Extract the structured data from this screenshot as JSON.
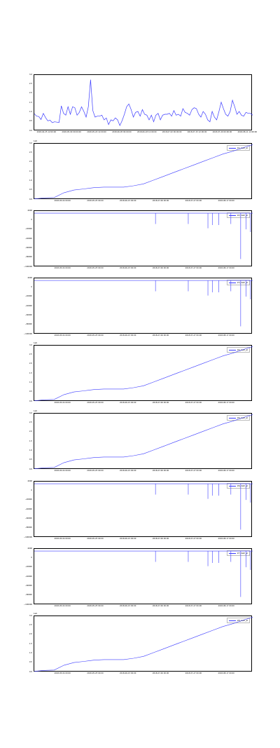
{
  "series_color": "#3b3bff",
  "chart_data": [
    {
      "type": "line",
      "title": "",
      "legend": "",
      "yticks": [
        "3.0",
        "2.5",
        "2.0",
        "1.5",
        "1.0",
        "0.5",
        "0.0"
      ],
      "ylim": [
        0.0,
        3.0
      ],
      "xticks": [
        "2018-04-25 12:00:00",
        "2018-05-09 00:00:00",
        "2018-05-22 12:00:00",
        "2018-06-05 00:00:00",
        "2018-06-18 12:00:00",
        "2018-07-02 00:00:00",
        "2018-07-15 12:00:00",
        "2018-07-29 00:00:00",
        "2018-08-11 12:00:00"
      ],
      "series_seed": 7,
      "y": [
        0.93,
        0.8,
        0.78,
        0.62,
        0.95,
        0.72,
        0.55,
        0.58,
        0.45,
        0.5,
        0.48,
        0.46,
        1.35,
        0.95,
        0.85,
        1.3,
        0.9,
        1.3,
        1.25,
        0.85,
        1.0,
        1.3,
        1.05,
        0.75,
        1.3,
        2.75,
        1.1,
        0.75,
        0.8,
        0.8,
        0.85,
        0.6,
        0.7,
        0.35,
        0.6,
        0.55,
        0.7,
        0.6,
        0.3,
        0.55,
        0.9,
        1.3,
        1.45,
        1.15,
        0.75,
        1.0,
        1.05,
        0.8,
        1.15,
        0.9,
        0.85,
        0.6,
        0.85,
        0.5,
        0.85,
        0.95,
        0.6,
        0.85,
        0.9,
        0.9,
        0.95,
        0.8,
        1.1,
        0.85,
        0.9,
        0.8,
        1.2,
        1.0,
        0.95,
        0.85,
        1.15,
        1.25,
        1.2,
        0.9,
        0.75,
        1.05,
        0.9,
        0.6,
        0.5,
        1.05,
        0.75,
        0.6,
        1.05,
        1.55,
        1.2,
        0.9,
        0.8,
        1.05,
        1.65,
        1.3,
        0.9,
        1.05,
        0.85,
        0.8,
        1.0,
        0.95,
        0.95,
        0.85
      ]
    },
    {
      "type": "line",
      "legend": "k1_kwh_sl",
      "offset": "1e6",
      "yticks": [
        "3.0",
        "2.5",
        "2.0",
        "1.5",
        "1.0",
        "0.5",
        "0.0"
      ],
      "ylim": [
        0,
        3.0
      ],
      "xticks": [
        "2018-05-04 00:00",
        "2018-05-25 00:00",
        "2018-06-15 00:00",
        "2018-07-06 00:00",
        "2018-07-27 00:00",
        "2018-08-17 00:00"
      ],
      "kind": "cumulative",
      "y": [
        0.05,
        0.1,
        0.12,
        0.38,
        0.52,
        0.58,
        0.65,
        0.68,
        0.68,
        0.68,
        0.75,
        0.85,
        1.05,
        1.25,
        1.45,
        1.65,
        1.85,
        2.05,
        2.25,
        2.45,
        2.6,
        2.78,
        2.95
      ]
    },
    {
      "type": "line",
      "legend": "k2_kwh_sl",
      "yticks": [
        "4000",
        "0",
        "−20000",
        "−40000",
        "−60000",
        "−80000",
        "−100000"
      ],
      "ylim": [
        -100000,
        4000
      ],
      "xticks": [
        "2018-05-04 00:00",
        "2018-05-25 00:00",
        "2018-06-15 00:00",
        "2018-07-06 00:00",
        "2018-07-27 00:00",
        "2018-08-17 00:00"
      ],
      "kind": "spikes",
      "spikes": [
        {
          "x": 0.555,
          "y": -20000
        },
        {
          "x": 0.705,
          "y": -20000
        },
        {
          "x": 0.795,
          "y": -28000
        },
        {
          "x": 0.815,
          "y": -22000
        },
        {
          "x": 0.845,
          "y": -22000
        },
        {
          "x": 0.9,
          "y": -20000
        },
        {
          "x": 0.945,
          "y": -85000
        },
        {
          "x": 0.97,
          "y": -30000
        },
        {
          "x": 0.99,
          "y": -35000
        }
      ]
    },
    {
      "type": "line",
      "legend": "k3_kwh_sl",
      "yticks": [
        "4000",
        "0",
        "−20000",
        "−40000",
        "−60000",
        "−80000",
        "−100000"
      ],
      "ylim": [
        -100000,
        4000
      ],
      "xticks": [
        "2018-05-04 00:00",
        "2018-05-25 00:00",
        "2018-06-15 00:00",
        "2018-07-06 00:00",
        "2018-07-27 00:00",
        "2018-08-17 00:00"
      ],
      "kind": "spikes",
      "spikes": [
        {
          "x": 0.555,
          "y": -20000
        },
        {
          "x": 0.705,
          "y": -20000
        },
        {
          "x": 0.795,
          "y": -28000
        },
        {
          "x": 0.815,
          "y": -22000
        },
        {
          "x": 0.845,
          "y": -22000
        },
        {
          "x": 0.9,
          "y": -20000
        },
        {
          "x": 0.945,
          "y": -85000
        },
        {
          "x": 0.97,
          "y": -30000
        },
        {
          "x": 0.99,
          "y": -35000
        }
      ]
    },
    {
      "type": "line",
      "legend": "k4_kwh_sl",
      "offset": "1e6",
      "yticks": [
        "3.0",
        "2.5",
        "2.0",
        "1.5",
        "1.0",
        "0.5",
        "0.0"
      ],
      "ylim": [
        0,
        3.0
      ],
      "xticks": [
        "2018-05-04 00:00",
        "2018-05-25 00:00",
        "2018-06-15 00:00",
        "2018-07-06 00:00",
        "2018-07-27 00:00",
        "2018-08-17 00:00"
      ],
      "kind": "cumulative",
      "y": [
        0.05,
        0.1,
        0.12,
        0.38,
        0.52,
        0.58,
        0.65,
        0.68,
        0.68,
        0.68,
        0.75,
        0.85,
        1.05,
        1.25,
        1.45,
        1.65,
        1.85,
        2.05,
        2.25,
        2.45,
        2.6,
        2.78,
        2.95
      ]
    },
    {
      "type": "line",
      "legend": "k5_kwh_sl",
      "offset": "1e6",
      "yticks": [
        "3.0",
        "2.5",
        "2.0",
        "1.5",
        "1.0",
        "0.5",
        "0.0"
      ],
      "ylim": [
        0,
        3.0
      ],
      "xticks": [
        "2018-05-04 00:00",
        "2018-05-25 00:00",
        "2018-06-15 00:00",
        "2018-07-06 00:00",
        "2018-07-27 00:00",
        "2018-08-17 00:00"
      ],
      "kind": "cumulative",
      "y": [
        0.05,
        0.1,
        0.12,
        0.38,
        0.52,
        0.58,
        0.65,
        0.68,
        0.68,
        0.68,
        0.75,
        0.85,
        1.05,
        1.25,
        1.45,
        1.65,
        1.85,
        2.05,
        2.25,
        2.45,
        2.6,
        2.78,
        2.95
      ]
    },
    {
      "type": "line",
      "legend": "k6_kwh_sl",
      "yticks": [
        "4000",
        "0",
        "−20000",
        "−40000",
        "−60000",
        "−80000",
        "−100000"
      ],
      "ylim": [
        -100000,
        4000
      ],
      "xticks": [
        "2018-05-04 00:00",
        "2018-05-25 00:00",
        "2018-06-15 00:00",
        "2018-07-06 00:00",
        "2018-07-27 00:00",
        "2018-08-17 00:00"
      ],
      "kind": "spikes",
      "spikes": [
        {
          "x": 0.555,
          "y": -20000
        },
        {
          "x": 0.705,
          "y": -20000
        },
        {
          "x": 0.795,
          "y": -28000
        },
        {
          "x": 0.815,
          "y": -22000
        },
        {
          "x": 0.845,
          "y": -22000
        },
        {
          "x": 0.9,
          "y": -20000
        },
        {
          "x": 0.945,
          "y": -85000
        },
        {
          "x": 0.97,
          "y": -30000
        },
        {
          "x": 0.99,
          "y": -35000
        }
      ]
    },
    {
      "type": "line",
      "legend": "k7_kwh_sl",
      "yticks": [
        "4000",
        "0",
        "−20000",
        "−40000",
        "−60000",
        "−80000",
        "−100000"
      ],
      "ylim": [
        -100000,
        4000
      ],
      "xticks": [
        "2018-05-04 00:00",
        "2018-05-25 00:00",
        "2018-06-15 00:00",
        "2018-07-06 00:00",
        "2018-07-27 00:00",
        "2018-08-17 00:00"
      ],
      "kind": "spikes",
      "spikes": [
        {
          "x": 0.555,
          "y": -20000
        },
        {
          "x": 0.705,
          "y": -20000
        },
        {
          "x": 0.795,
          "y": -28000
        },
        {
          "x": 0.815,
          "y": -22000
        },
        {
          "x": 0.845,
          "y": -22000
        },
        {
          "x": 0.9,
          "y": -20000
        },
        {
          "x": 0.945,
          "y": -85000
        },
        {
          "x": 0.97,
          "y": -30000
        },
        {
          "x": 0.99,
          "y": -35000
        }
      ]
    },
    {
      "type": "line",
      "legend": "k8_kwh_sl",
      "offset": "1e6",
      "yticks": [
        "3.0",
        "2.5",
        "2.0",
        "1.5",
        "1.0",
        "0.5",
        "0.0"
      ],
      "ylim": [
        0,
        3.0
      ],
      "xticks": [
        "2018-05-04 00:00",
        "2018-05-25 00:00",
        "2018-06-15 00:00",
        "2018-07-06 00:00",
        "2018-07-27 00:00",
        "2018-08-17 00:00"
      ],
      "kind": "cumulative",
      "y": [
        0.05,
        0.1,
        0.12,
        0.38,
        0.52,
        0.58,
        0.65,
        0.68,
        0.68,
        0.68,
        0.75,
        0.85,
        1.05,
        1.25,
        1.45,
        1.65,
        1.85,
        2.05,
        2.25,
        2.45,
        2.6,
        2.78,
        2.95
      ]
    }
  ]
}
